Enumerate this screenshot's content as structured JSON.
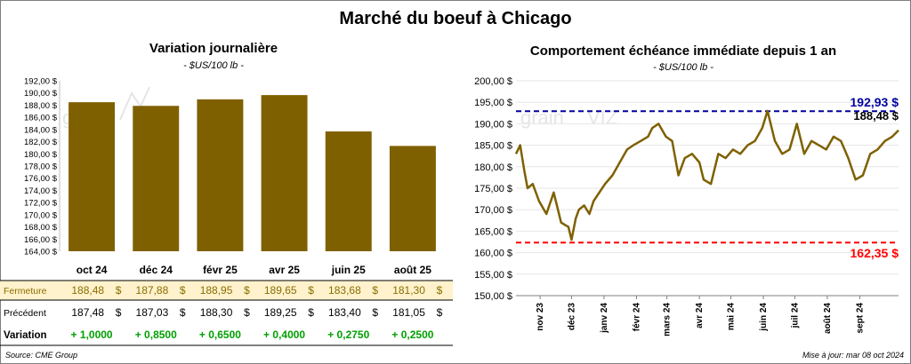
{
  "main_title": "Marché du boeuf à Chicago",
  "source": "Source: CME Group",
  "updated": "Mise à jour: mar 08 oct 2024",
  "colors": {
    "bar": "#7f6000",
    "line": "#7f6000",
    "high": "#0000a0",
    "low": "#ff0000",
    "fermeture_bg": "#fff2cc",
    "fermeture_text": "#8a6d00",
    "variation_text": "#00a000"
  },
  "table": {
    "rows": [
      {
        "label": "Fermeture",
        "values": [
          "188,48",
          "187,88",
          "188,95",
          "189,65",
          "183,68",
          "181,30"
        ],
        "unit": "$"
      },
      {
        "label": "Précédent",
        "values": [
          "187,48",
          "187,03",
          "188,30",
          "189,25",
          "183,40",
          "181,05"
        ],
        "unit": "$"
      },
      {
        "label": "Variation",
        "values": [
          "+ 1,0000",
          "+ 0,8500",
          "+ 0,6500",
          "+ 0,4000",
          "+ 0,2750",
          "+ 0,2500"
        ],
        "unit": ""
      }
    ]
  },
  "chart_data": [
    {
      "type": "bar",
      "title": "Variation  journalière",
      "subtitle": "- $US/100 lb -",
      "categories": [
        "oct 24",
        "déc 24",
        "févr 25",
        "avr 25",
        "juin 25",
        "août 25"
      ],
      "values": [
        188.48,
        187.88,
        188.95,
        189.65,
        183.68,
        181.3
      ],
      "ylim": [
        164,
        192
      ],
      "yticks": [
        "164,00 $",
        "166,00 $",
        "168,00 $",
        "170,00 $",
        "172,00 $",
        "174,00 $",
        "176,00 $",
        "178,00 $",
        "180,00 $",
        "182,00 $",
        "184,00 $",
        "186,00 $",
        "188,00 $",
        "190,00 $",
        "192,00 $"
      ],
      "grid": false
    },
    {
      "type": "line",
      "title": "Comportement  échéance immédiate depuis 1 an",
      "subtitle": "- $US/100 lb -",
      "ylim": [
        150,
        200
      ],
      "yticks": [
        "150,00 $",
        "155,00 $",
        "160,00 $",
        "165,00 $",
        "170,00 $",
        "175,00 $",
        "180,00 $",
        "185,00 $",
        "190,00 $",
        "195,00 $",
        "200,00 $"
      ],
      "xlabels": [
        "nov 23",
        "déc 23",
        "janv 24",
        "févr 24",
        "mars 24",
        "avr 24",
        "mai 24",
        "juin 24",
        "juil 24",
        "août 24",
        "sept 24"
      ],
      "x": [
        "2023-10-09",
        "2023-10-13",
        "2023-10-17",
        "2023-10-20",
        "2023-10-25",
        "2023-10-31",
        "2023-11-07",
        "2023-11-14",
        "2023-11-21",
        "2023-11-28",
        "2023-12-01",
        "2023-12-05",
        "2023-12-08",
        "2023-12-13",
        "2023-12-18",
        "2023-12-22",
        "2024-01-02",
        "2024-01-09",
        "2024-01-16",
        "2024-01-23",
        "2024-01-29",
        "2024-02-05",
        "2024-02-12",
        "2024-02-16",
        "2024-02-22",
        "2024-02-29",
        "2024-03-06",
        "2024-03-12",
        "2024-03-18",
        "2024-03-25",
        "2024-04-01",
        "2024-04-05",
        "2024-04-12",
        "2024-04-19",
        "2024-04-26",
        "2024-05-03",
        "2024-05-10",
        "2024-05-17",
        "2024-05-24",
        "2024-05-31",
        "2024-06-05",
        "2024-06-12",
        "2024-06-19",
        "2024-06-26",
        "2024-07-03",
        "2024-07-10",
        "2024-07-17",
        "2024-07-24",
        "2024-07-31",
        "2024-08-07",
        "2024-08-14",
        "2024-08-21",
        "2024-08-28",
        "2024-09-04",
        "2024-09-11",
        "2024-09-18",
        "2024-09-25",
        "2024-10-02",
        "2024-10-08"
      ],
      "values": [
        183,
        185,
        179,
        175,
        176,
        172,
        169,
        174,
        167,
        166,
        163,
        168,
        170,
        171,
        169,
        172,
        176,
        178,
        181,
        184,
        185,
        186,
        187,
        189,
        190,
        187,
        186,
        178,
        182,
        183,
        181,
        177,
        176,
        183,
        182,
        184,
        183,
        185,
        186,
        189,
        193,
        186,
        183,
        184,
        190,
        183,
        186,
        185,
        184,
        187,
        186,
        182,
        177,
        178,
        183,
        184,
        186,
        187,
        188.48
      ],
      "series_name": "",
      "high": {
        "value": 192.93,
        "label": "192,93 $"
      },
      "low": {
        "value": 162.35,
        "label": "162,35 $"
      },
      "last": {
        "value": 188.48,
        "label": "188,48 $"
      }
    }
  ]
}
